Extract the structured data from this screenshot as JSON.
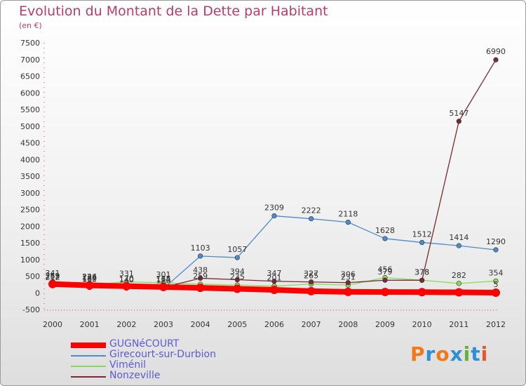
{
  "header": {
    "title": "Evolution du Montant de la Dette par Habitant",
    "unit": "(en €)"
  },
  "brand": {
    "text": "Proxiti",
    "colors": [
      "#f07a1a",
      "#2e8fd6",
      "#f07a1a",
      "#2e8fd6",
      "#63b23a",
      "#2e8fd6",
      "#e8572a"
    ]
  },
  "chart_data": {
    "type": "line",
    "title": "Evolution du Montant de la Dette par Habitant",
    "ylabel": "(en €)",
    "xlabel": "",
    "x": [
      "2000",
      "2001",
      "2002",
      "2003",
      "2004",
      "2005",
      "2006",
      "2007",
      "2008",
      "2009",
      "2010",
      "2011",
      "2012"
    ],
    "ylim": [
      -500,
      7500
    ],
    "yticks": [
      "-500",
      "0",
      "500",
      "1000",
      "1500",
      "2000",
      "2500",
      "3000",
      "3500",
      "4000",
      "4500",
      "5000",
      "5500",
      "6000",
      "6500",
      "7000",
      "7500"
    ],
    "grid": false,
    "legend_position": "bottom-left",
    "series": [
      {
        "name": "GUGNéCOURT",
        "color": "#ff0000",
        "values": [
          262,
          224,
          200,
          175,
          150,
          120,
          90,
          50,
          30,
          25,
          20,
          15,
          5
        ],
        "labels": [
          "262",
          "224",
          "",
          "175",
          "",
          "",
          "",
          "",
          "",
          "",
          "",
          "",
          "5"
        ]
      },
      {
        "name": "Girecourt-sur-Durbion",
        "color": "#4d8ccc",
        "values": [
          212,
          162,
          140,
          126,
          1103,
          1057,
          2309,
          2222,
          2118,
          1628,
          1512,
          1414,
          1290
        ],
        "labels": [
          "212",
          "162",
          "140",
          "126",
          "1103",
          "1057",
          "2309",
          "2222",
          "2118",
          "1628",
          "1512",
          "1414",
          "1290"
        ]
      },
      {
        "name": "Viménil",
        "color": "#88dd55",
        "values": [
          341,
          236,
          331,
          301,
          259,
          235,
          201,
          265,
          231,
          456,
          378,
          282,
          354
        ],
        "labels": [
          "341",
          "236",
          "331",
          "301",
          "259",
          "235",
          "201",
          "265",
          "231",
          "456",
          "378",
          "282",
          "354"
        ]
      },
      {
        "name": "Nonzeville",
        "color": "#7a2a36",
        "values": [
          259,
          184,
          170,
          164,
          438,
          394,
          347,
          327,
          306,
          379,
          378,
          5147,
          6990
        ],
        "labels": [
          "259",
          "184",
          "170",
          "164",
          "438",
          "394",
          "347",
          "327",
          "306",
          "379",
          "378",
          "5147",
          "6990"
        ]
      }
    ]
  }
}
